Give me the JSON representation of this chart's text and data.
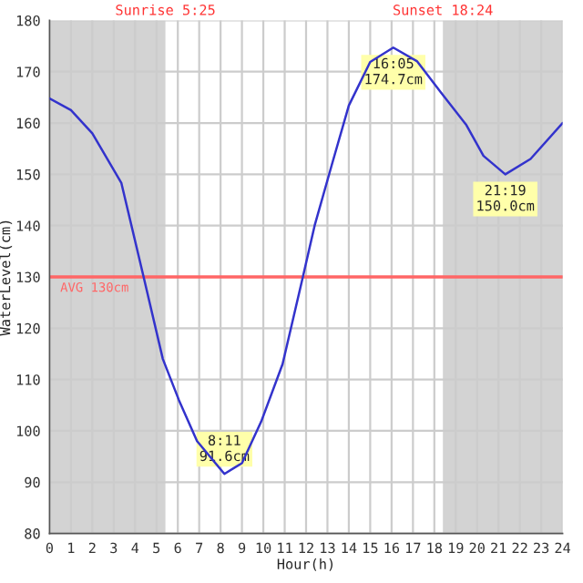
{
  "chart_data": {
    "type": "line",
    "xlabel": "Hour(h)",
    "ylabel": "WaterLevel(cm)",
    "series": [
      {
        "color": "#3333cc",
        "x": [
          0,
          1,
          2,
          3.36,
          4.4,
          5.3,
          6.05,
          6.9,
          8.18,
          9.0,
          9.9,
          10.9,
          11.85,
          12.4,
          13.2,
          14.0,
          15.0,
          16.08,
          17.2,
          18.3,
          19.5,
          20.3,
          21.32,
          22.5,
          24
        ],
        "values": [
          164.8,
          162.5,
          158,
          148.3,
          130,
          114,
          106,
          98,
          91.6,
          93.7,
          101.8,
          113,
          130,
          140,
          151.8,
          163.4,
          171.9,
          174.7,
          172,
          166,
          159.6,
          153.6,
          150.0,
          153,
          160
        ]
      }
    ],
    "xlim": [
      0,
      24
    ],
    "xticks": [
      0,
      1,
      2,
      3,
      4,
      5,
      6,
      7,
      8,
      9,
      10,
      11,
      12,
      13,
      14,
      15,
      16,
      17,
      18,
      19,
      20,
      21,
      22,
      23,
      24
    ],
    "ylim": [
      80,
      180
    ],
    "yticks": [
      80,
      90,
      100,
      110,
      120,
      130,
      140,
      150,
      160,
      170,
      180
    ],
    "grid": true,
    "legend": false,
    "marker": "none",
    "line_style": "solid",
    "ref_lines": [
      {
        "axis": "y",
        "value": 130,
        "label": "AVG 130cm",
        "color": "#ff6666"
      }
    ],
    "bands": [
      {
        "axis": "x",
        "from": 0,
        "to": 5.42,
        "label": "Sunrise 5:25",
        "color": "#d3d3d3"
      },
      {
        "axis": "x",
        "from": 18.4,
        "to": 24,
        "label": "Sunset 18:24",
        "color": "#d3d3d3"
      }
    ],
    "annotations": [
      {
        "text": "8:11\n91.6cm",
        "x": 8.18,
        "y": 91.6
      },
      {
        "text": "16:05\n174.7cm",
        "x": 16.08,
        "y": 174.7
      },
      {
        "text": "21:19\n150.0cm",
        "x": 21.32,
        "y": 150.0
      }
    ]
  }
}
